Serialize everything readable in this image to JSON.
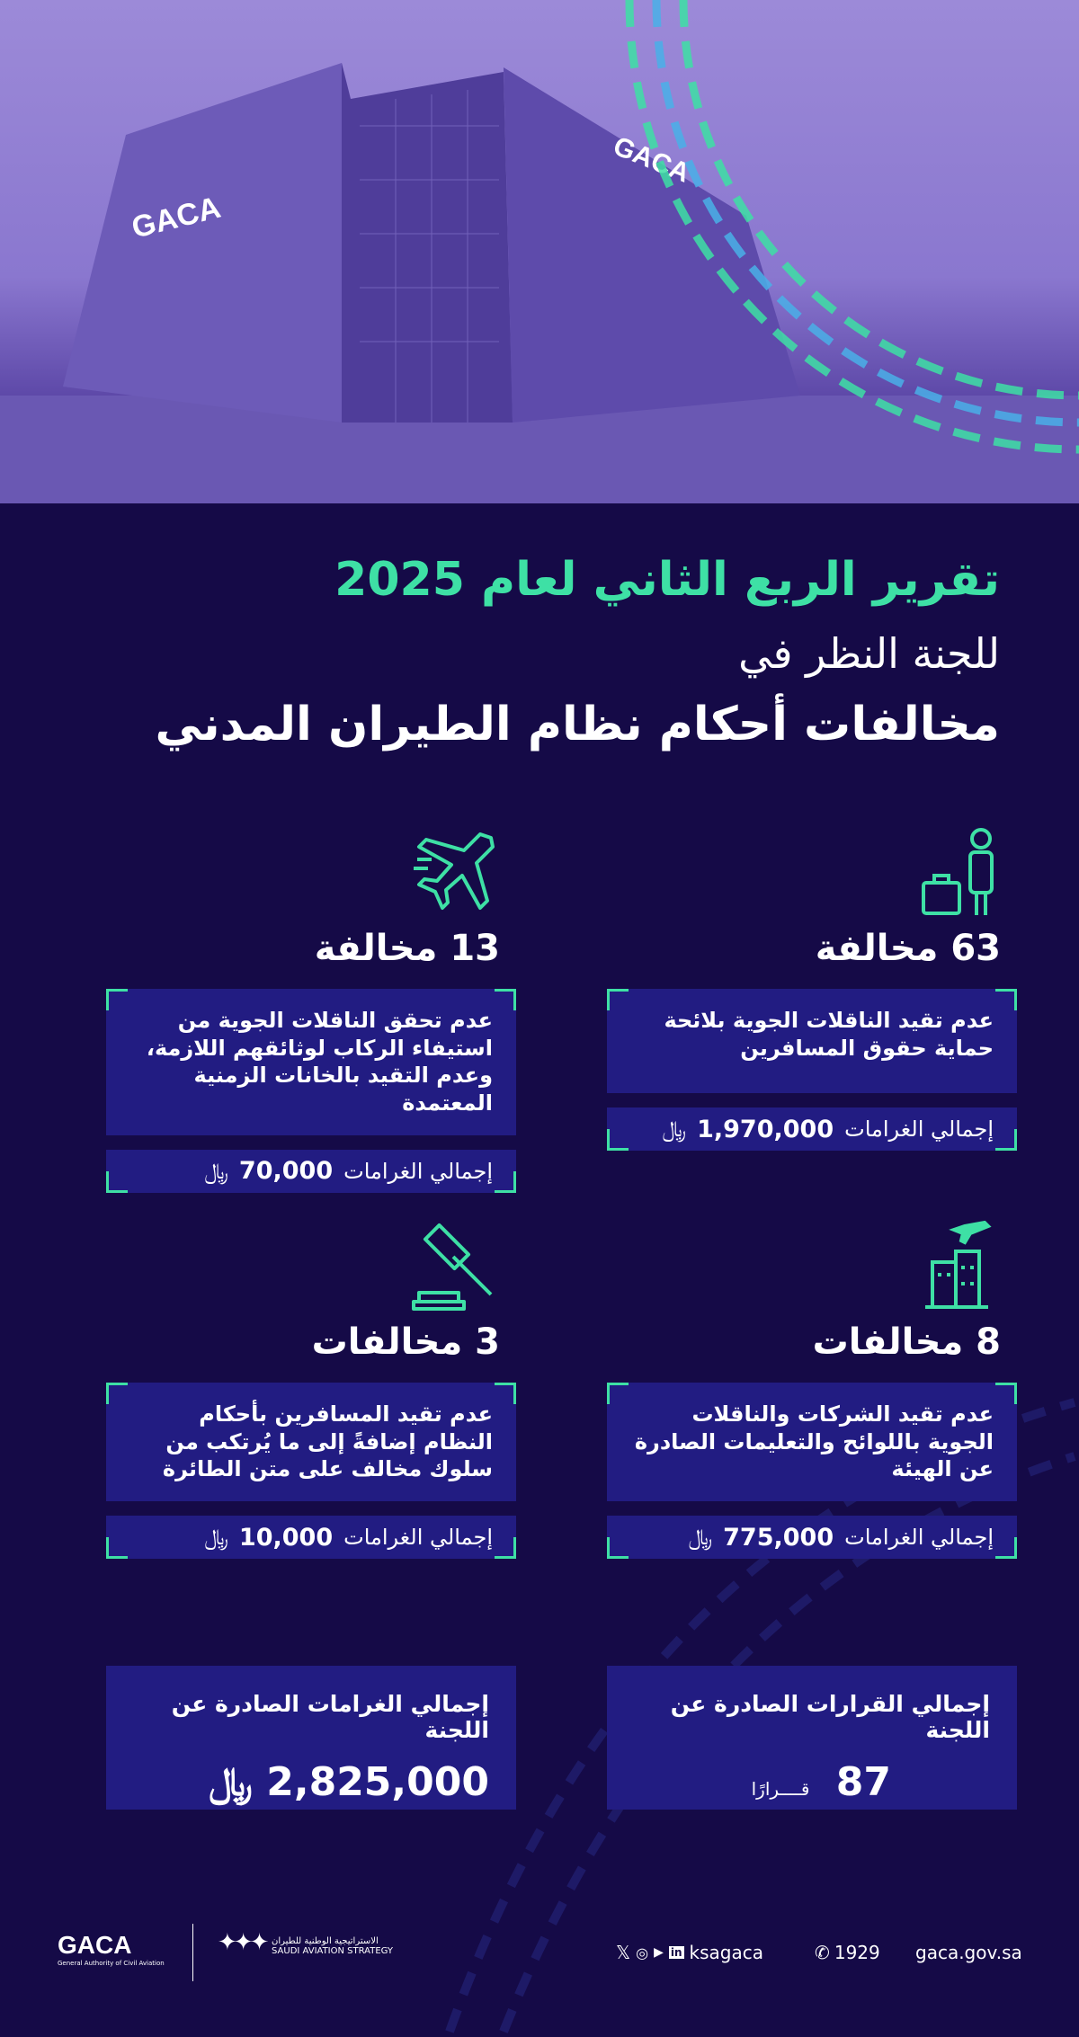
{
  "colors": {
    "background": "#150a47",
    "box": "#221c82",
    "accent": "#3ee0a5"
  },
  "hero": {
    "building_logo": "GACA"
  },
  "title": {
    "line1": "تقرير الربع الثاني لعام 2025",
    "line2": "للجنة النظر في",
    "line3": "مخالفات أحكام نظام الطيران المدني"
  },
  "cards": [
    {
      "icon": "passenger-luggage-icon",
      "headline": "63 مخالفة",
      "description": "عدم تقيد الناقلات الجوية بلائحة حماية حقوق المسافرين",
      "fine_label": "إجمالي الغرامات",
      "fine_value": "1,970,000",
      "currency": "﷼"
    },
    {
      "icon": "airplane-icon",
      "headline": "13 مخالفة",
      "description": "عدم تحقق الناقلات الجوية من استيفاء الركاب لوثائقهم اللازمة، وعدم التقيد بالخانات الزمنية المعتمدة",
      "fine_label": "إجمالي الغرامات",
      "fine_value": "70,000",
      "currency": "﷼"
    },
    {
      "icon": "building-airplane-icon",
      "headline": "8 مخالفات",
      "description": "عدم تقيد الشركات والناقلات الجوية باللوائح والتعليمات الصادرة عن الهيئة",
      "fine_label": "إجمالي الغرامات",
      "fine_value": "775,000",
      "currency": "﷼"
    },
    {
      "icon": "gavel-icon",
      "headline": "3 مخالفات",
      "description": "عدم تقيد المسافرين بأحكام النظام إضافةً إلى ما يُرتكب من سلوك مخالف على متن الطائرة",
      "fine_label": "إجمالي الغرامات",
      "fine_value": "10,000",
      "currency": "﷼"
    }
  ],
  "totals": {
    "decisions_label": "إجمالي القرارات الصادرة عن اللجنة",
    "decisions_value": "87",
    "decisions_unit": "قــــرارًا",
    "fines_label": "إجمالي الغرامات الصادرة عن اللجنة",
    "fines_value": "2,825,000",
    "currency": "﷼"
  },
  "footer": {
    "gaca_logo": "GACA",
    "gaca_sub": "General Authority of Civil Aviation",
    "strategy_ar": "الاستراتيجية الوطنية للطيران",
    "strategy_en": "SAUDI AVIATION STRATEGY",
    "social_handle": "ksagaca",
    "phone": "1929",
    "website": "gaca.gov.sa"
  }
}
